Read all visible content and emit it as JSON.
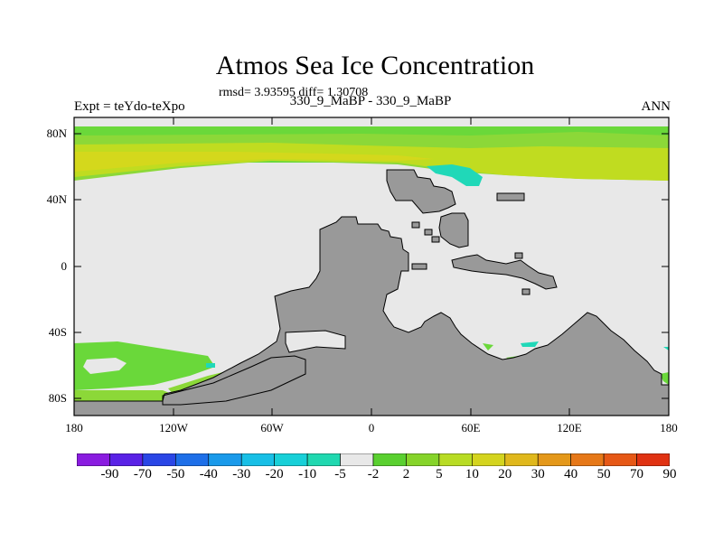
{
  "title": "Atmos Sea Ice Concentration",
  "stats": "rmsd= 3.93595 diff= 1.30708",
  "subtitle": "330_9_MaBP - 330_9_MaBP",
  "expt": "Expt = teYdo-teXpo",
  "season": "ANN",
  "y_ticks": [
    "80N",
    "40N",
    "0",
    "40S",
    "80S"
  ],
  "x_ticks": [
    "180",
    "120W",
    "60W",
    "0",
    "60E",
    "120E",
    "180"
  ],
  "colorbar": {
    "labels": [
      "-90",
      "-70",
      "-50",
      "-40",
      "-30",
      "-20",
      "-10",
      "-5",
      "-2",
      "2",
      "5",
      "10",
      "20",
      "30",
      "40",
      "50",
      "70",
      "90"
    ],
    "colors": [
      "#8a1ce0",
      "#5a22e6",
      "#2a46e6",
      "#1e6fe8",
      "#1a9aea",
      "#18bfe6",
      "#18d0d8",
      "#20d8b0",
      "#e8e8e8",
      "#5ad030",
      "#86d42a",
      "#b8dc24",
      "#d4d41e",
      "#e0b81c",
      "#e4981a",
      "#e67818",
      "#e65816",
      "#e03212"
    ]
  },
  "colors": {
    "ocean_zero": "#e8e8e8",
    "land": "#999999",
    "ice_lightgreen": "#6ad83a",
    "ice_green": "#8cd838",
    "ice_yellowgreen": "#c0dc20",
    "ice_yellow": "#d4d81c",
    "ice_cyan": "#20d8b8"
  }
}
